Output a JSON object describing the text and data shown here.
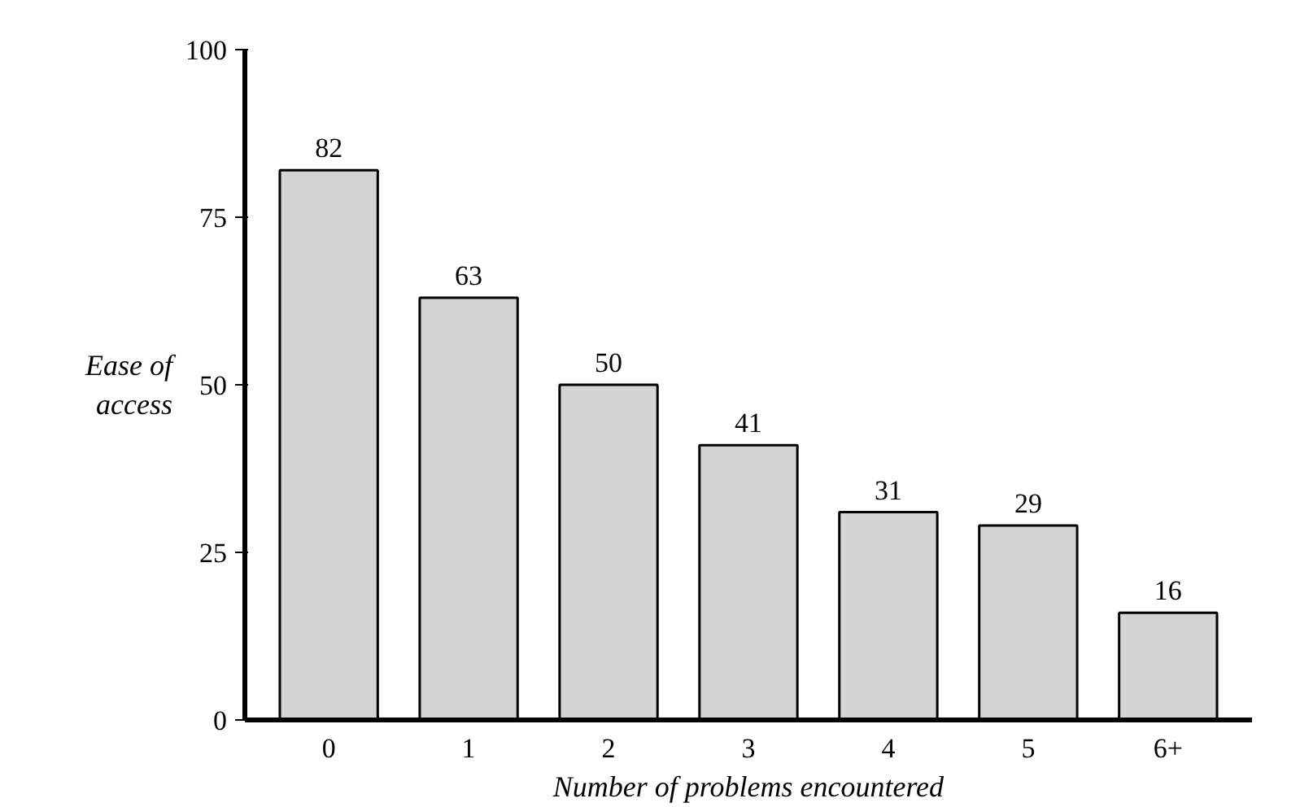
{
  "chart_data": {
    "type": "bar",
    "xlabel": "Number of problems encountered",
    "ylabel": "Ease of access",
    "categories": [
      "0",
      "1",
      "2",
      "3",
      "4",
      "5",
      "6+"
    ],
    "values": [
      82,
      63,
      50,
      41,
      31,
      29,
      16
    ],
    "color": "#d4d4d4",
    "ylim": [
      0,
      100
    ],
    "yticks": [
      0,
      25,
      50,
      75,
      100
    ],
    "data_labels": true,
    "grid": false
  }
}
